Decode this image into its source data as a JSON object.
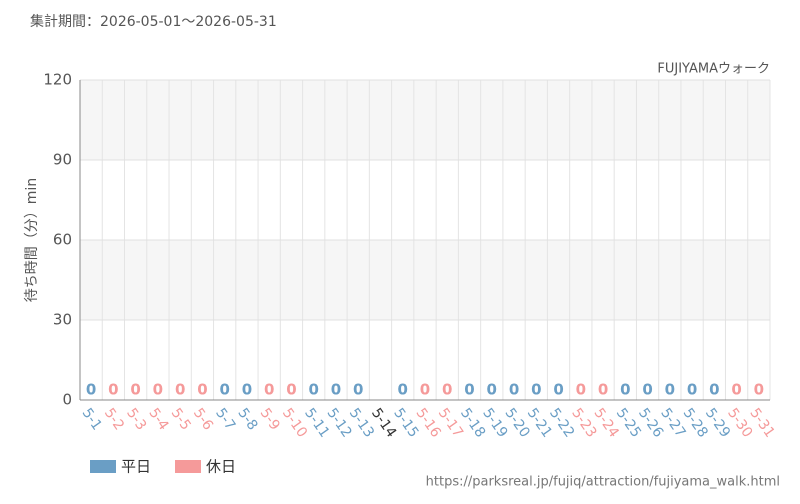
{
  "chart_data": {
    "type": "bar",
    "title": "集計期間：2026-05-01～2026-05-31",
    "subtitle": "FUJIYAMAウォーク",
    "y_label": "待ち時間（分）min",
    "source": "https://parksreal.jp/fujiq/attraction/fujiyama_walk.html",
    "categories": [
      "5-1",
      "5-2",
      "5-3",
      "5-4",
      "5-5",
      "5-6",
      "5-7",
      "5-8",
      "5-9",
      "5-10",
      "5-11",
      "5-12",
      "5-13",
      "5-14",
      "5-15",
      "5-16",
      "5-17",
      "5-18",
      "5-19",
      "5-20",
      "5-21",
      "5-22",
      "5-23",
      "5-24",
      "5-25",
      "5-26",
      "5-27",
      "5-28",
      "5-29",
      "5-30",
      "5-31"
    ],
    "series": [
      {
        "name": "平日",
        "color": "#6a9ec5",
        "values": [
          0,
          null,
          null,
          null,
          null,
          null,
          0,
          0,
          null,
          null,
          0,
          0,
          0,
          null,
          0,
          null,
          null,
          0,
          0,
          0,
          0,
          0,
          null,
          null,
          0,
          0,
          0,
          0,
          0,
          null,
          null
        ]
      },
      {
        "name": "休日",
        "color": "#f59a9a",
        "values": [
          null,
          0,
          0,
          0,
          0,
          0,
          null,
          null,
          0,
          0,
          null,
          null,
          null,
          null,
          null,
          0,
          0,
          null,
          null,
          null,
          null,
          null,
          0,
          0,
          null,
          null,
          null,
          null,
          null,
          0,
          0
        ]
      }
    ],
    "ylim": [
      0,
      120
    ],
    "yticks": [
      0,
      30,
      60,
      90,
      120
    ],
    "grid": true
  }
}
